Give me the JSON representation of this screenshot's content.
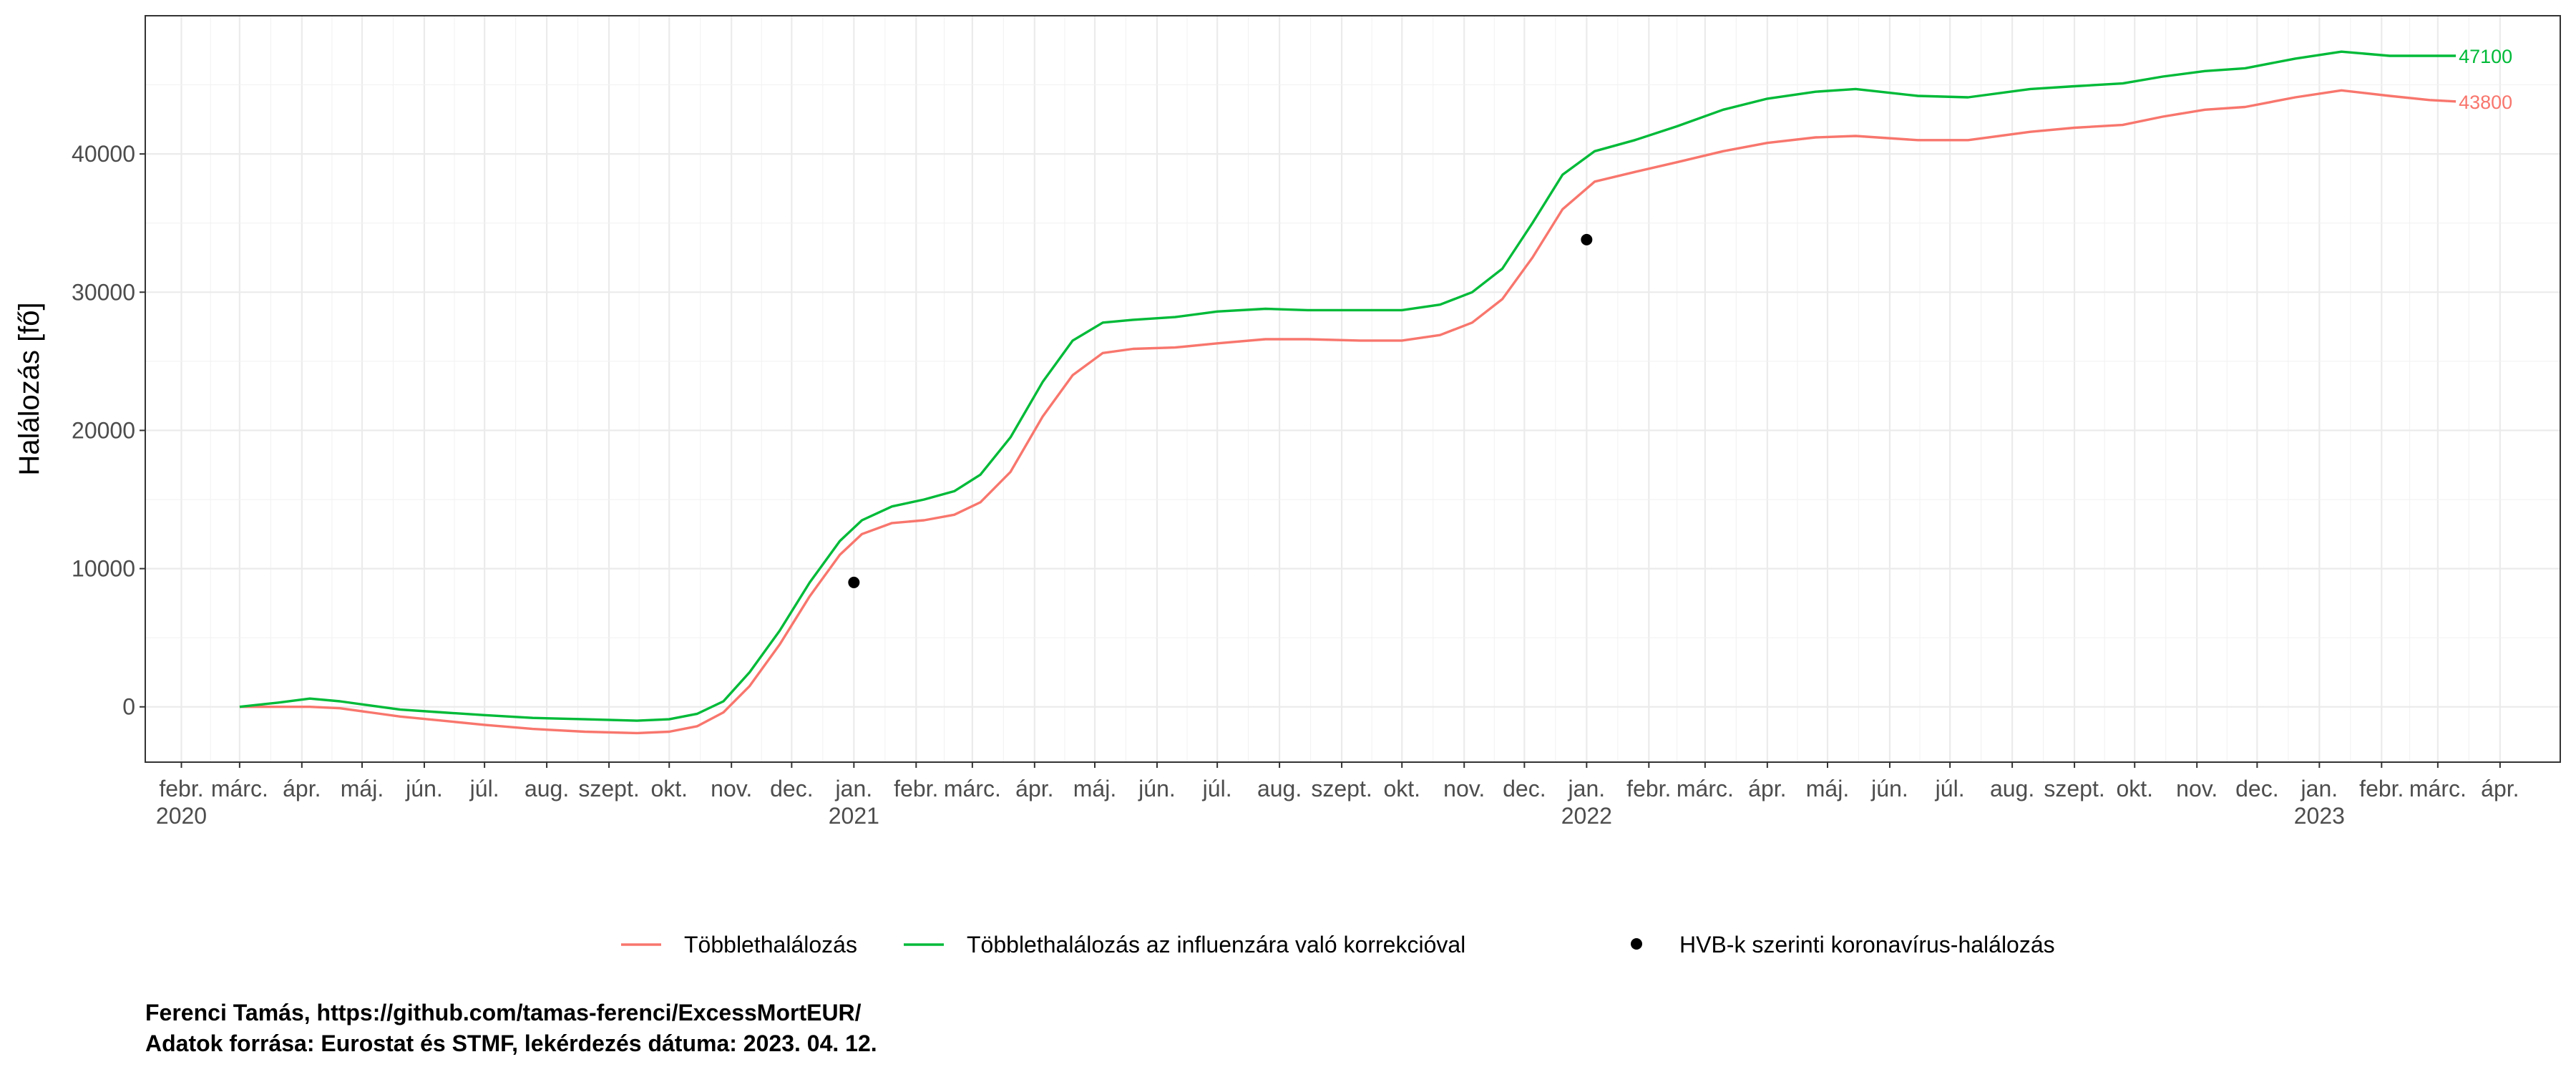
{
  "chart_data": {
    "type": "line",
    "ylabel": "Halálozás [fő]",
    "ylim": [
      -4000,
      50000
    ],
    "yticks": [
      0,
      10000,
      20000,
      30000,
      40000
    ],
    "xlim": [
      "2020-01-14",
      "2023-05-01"
    ],
    "grid": true,
    "legend_position": "bottom",
    "x_ticks": [
      {
        "date": "2020-02-01",
        "label": "febr.",
        "year": "2020"
      },
      {
        "date": "2020-03-01",
        "label": "márc.",
        "year": ""
      },
      {
        "date": "2020-04-01",
        "label": "ápr.",
        "year": ""
      },
      {
        "date": "2020-05-01",
        "label": "máj.",
        "year": ""
      },
      {
        "date": "2020-06-01",
        "label": "jún.",
        "year": ""
      },
      {
        "date": "2020-07-01",
        "label": "júl.",
        "year": ""
      },
      {
        "date": "2020-08-01",
        "label": "aug.",
        "year": ""
      },
      {
        "date": "2020-09-01",
        "label": "szept.",
        "year": ""
      },
      {
        "date": "2020-10-01",
        "label": "okt.",
        "year": ""
      },
      {
        "date": "2020-11-01",
        "label": "nov.",
        "year": ""
      },
      {
        "date": "2020-12-01",
        "label": "dec.",
        "year": ""
      },
      {
        "date": "2021-01-01",
        "label": "jan.",
        "year": "2021"
      },
      {
        "date": "2021-02-01",
        "label": "febr.",
        "year": ""
      },
      {
        "date": "2021-03-01",
        "label": "márc.",
        "year": ""
      },
      {
        "date": "2021-04-01",
        "label": "ápr.",
        "year": ""
      },
      {
        "date": "2021-05-01",
        "label": "máj.",
        "year": ""
      },
      {
        "date": "2021-06-01",
        "label": "jún.",
        "year": ""
      },
      {
        "date": "2021-07-01",
        "label": "júl.",
        "year": ""
      },
      {
        "date": "2021-08-01",
        "label": "aug.",
        "year": ""
      },
      {
        "date": "2021-09-01",
        "label": "szept.",
        "year": ""
      },
      {
        "date": "2021-10-01",
        "label": "okt.",
        "year": ""
      },
      {
        "date": "2021-11-01",
        "label": "nov.",
        "year": ""
      },
      {
        "date": "2021-12-01",
        "label": "dec.",
        "year": ""
      },
      {
        "date": "2022-01-01",
        "label": "jan.",
        "year": "2022"
      },
      {
        "date": "2022-02-01",
        "label": "febr.",
        "year": ""
      },
      {
        "date": "2022-03-01",
        "label": "márc.",
        "year": ""
      },
      {
        "date": "2022-04-01",
        "label": "ápr.",
        "year": ""
      },
      {
        "date": "2022-05-01",
        "label": "máj.",
        "year": ""
      },
      {
        "date": "2022-06-01",
        "label": "jún.",
        "year": ""
      },
      {
        "date": "2022-07-01",
        "label": "júl.",
        "year": ""
      },
      {
        "date": "2022-08-01",
        "label": "aug.",
        "year": ""
      },
      {
        "date": "2022-09-01",
        "label": "szept.",
        "year": ""
      },
      {
        "date": "2022-10-01",
        "label": "okt.",
        "year": ""
      },
      {
        "date": "2022-11-01",
        "label": "nov.",
        "year": ""
      },
      {
        "date": "2022-12-01",
        "label": "dec.",
        "year": ""
      },
      {
        "date": "2023-01-01",
        "label": "jan.",
        "year": "2023"
      },
      {
        "date": "2023-02-01",
        "label": "febr.",
        "year": ""
      },
      {
        "date": "2023-03-01",
        "label": "márc.",
        "year": ""
      },
      {
        "date": "2023-04-01",
        "label": "ápr.",
        "year": ""
      }
    ],
    "series": [
      {
        "name": "Többlethalálozás",
        "color": "#F8766D",
        "end_label": "43800",
        "points": [
          [
            "2020-03-01",
            0
          ],
          [
            "2020-03-20",
            0
          ],
          [
            "2020-04-05",
            0
          ],
          [
            "2020-04-20",
            -100
          ],
          [
            "2020-05-05",
            -400
          ],
          [
            "2020-05-20",
            -700
          ],
          [
            "2020-06-10",
            -1000
          ],
          [
            "2020-07-01",
            -1300
          ],
          [
            "2020-07-25",
            -1600
          ],
          [
            "2020-08-20",
            -1800
          ],
          [
            "2020-09-15",
            -1900
          ],
          [
            "2020-10-01",
            -1800
          ],
          [
            "2020-10-15",
            -1400
          ],
          [
            "2020-10-28",
            -400
          ],
          [
            "2020-11-10",
            1500
          ],
          [
            "2020-11-25",
            4500
          ],
          [
            "2020-12-10",
            8000
          ],
          [
            "2020-12-25",
            11000
          ],
          [
            "2021-01-05",
            12500
          ],
          [
            "2021-01-20",
            13300
          ],
          [
            "2021-02-05",
            13500
          ],
          [
            "2021-02-20",
            13900
          ],
          [
            "2021-03-05",
            14800
          ],
          [
            "2021-03-20",
            17000
          ],
          [
            "2021-04-05",
            21000
          ],
          [
            "2021-04-20",
            24000
          ],
          [
            "2021-05-05",
            25600
          ],
          [
            "2021-05-20",
            25900
          ],
          [
            "2021-06-10",
            26000
          ],
          [
            "2021-07-01",
            26300
          ],
          [
            "2021-07-25",
            26600
          ],
          [
            "2021-08-15",
            26600
          ],
          [
            "2021-09-10",
            26500
          ],
          [
            "2021-10-01",
            26500
          ],
          [
            "2021-10-20",
            26900
          ],
          [
            "2021-11-05",
            27800
          ],
          [
            "2021-11-20",
            29500
          ],
          [
            "2021-12-05",
            32500
          ],
          [
            "2021-12-20",
            36000
          ],
          [
            "2022-01-05",
            38000
          ],
          [
            "2022-01-25",
            38700
          ],
          [
            "2022-02-15",
            39400
          ],
          [
            "2022-03-10",
            40200
          ],
          [
            "2022-04-01",
            40800
          ],
          [
            "2022-04-25",
            41200
          ],
          [
            "2022-05-15",
            41300
          ],
          [
            "2022-06-15",
            41000
          ],
          [
            "2022-07-10",
            41000
          ],
          [
            "2022-08-10",
            41600
          ],
          [
            "2022-09-01",
            41900
          ],
          [
            "2022-09-25",
            42100
          ],
          [
            "2022-10-15",
            42700
          ],
          [
            "2022-11-05",
            43200
          ],
          [
            "2022-11-25",
            43400
          ],
          [
            "2022-12-20",
            44100
          ],
          [
            "2023-01-12",
            44600
          ],
          [
            "2023-02-05",
            44200
          ],
          [
            "2023-02-25",
            43900
          ],
          [
            "2023-03-10",
            43800
          ]
        ]
      },
      {
        "name": "Többlethalálozás az influenzára való korrekcióval",
        "color": "#00BA38",
        "end_label": "47100",
        "points": [
          [
            "2020-03-01",
            0
          ],
          [
            "2020-03-20",
            300
          ],
          [
            "2020-04-05",
            600
          ],
          [
            "2020-04-20",
            400
          ],
          [
            "2020-05-05",
            100
          ],
          [
            "2020-05-20",
            -200
          ],
          [
            "2020-06-10",
            -400
          ],
          [
            "2020-07-01",
            -600
          ],
          [
            "2020-07-25",
            -800
          ],
          [
            "2020-08-20",
            -900
          ],
          [
            "2020-09-15",
            -1000
          ],
          [
            "2020-10-01",
            -900
          ],
          [
            "2020-10-15",
            -500
          ],
          [
            "2020-10-28",
            400
          ],
          [
            "2020-11-10",
            2500
          ],
          [
            "2020-11-25",
            5500
          ],
          [
            "2020-12-10",
            9000
          ],
          [
            "2020-12-25",
            12000
          ],
          [
            "2021-01-05",
            13500
          ],
          [
            "2021-01-20",
            14500
          ],
          [
            "2021-02-05",
            15000
          ],
          [
            "2021-02-20",
            15600
          ],
          [
            "2021-03-05",
            16800
          ],
          [
            "2021-03-20",
            19500
          ],
          [
            "2021-04-05",
            23500
          ],
          [
            "2021-04-20",
            26500
          ],
          [
            "2021-05-05",
            27800
          ],
          [
            "2021-05-20",
            28000
          ],
          [
            "2021-06-10",
            28200
          ],
          [
            "2021-07-01",
            28600
          ],
          [
            "2021-07-25",
            28800
          ],
          [
            "2021-08-15",
            28700
          ],
          [
            "2021-09-10",
            28700
          ],
          [
            "2021-10-01",
            28700
          ],
          [
            "2021-10-20",
            29100
          ],
          [
            "2021-11-05",
            30000
          ],
          [
            "2021-11-20",
            31700
          ],
          [
            "2021-12-05",
            35000
          ],
          [
            "2021-12-20",
            38500
          ],
          [
            "2022-01-05",
            40200
          ],
          [
            "2022-01-25",
            41000
          ],
          [
            "2022-02-15",
            42000
          ],
          [
            "2022-03-10",
            43200
          ],
          [
            "2022-04-01",
            44000
          ],
          [
            "2022-04-25",
            44500
          ],
          [
            "2022-05-15",
            44700
          ],
          [
            "2022-06-15",
            44200
          ],
          [
            "2022-07-10",
            44100
          ],
          [
            "2022-08-10",
            44700
          ],
          [
            "2022-09-01",
            44900
          ],
          [
            "2022-09-25",
            45100
          ],
          [
            "2022-10-15",
            45600
          ],
          [
            "2022-11-05",
            46000
          ],
          [
            "2022-11-25",
            46200
          ],
          [
            "2022-12-20",
            46900
          ],
          [
            "2023-01-12",
            47400
          ],
          [
            "2023-02-05",
            47100
          ],
          [
            "2023-02-25",
            47100
          ],
          [
            "2023-03-10",
            47100
          ]
        ]
      }
    ],
    "points_series": {
      "name": "HVB-k szerinti koronavírus-halálozás",
      "color": "#000000",
      "points": [
        [
          "2021-01-01",
          9000
        ],
        [
          "2022-01-01",
          33800
        ]
      ]
    }
  },
  "caption": {
    "line1": "Ferenci Tamás, https://github.com/tamas-ferenci/ExcessMortEUR/",
    "line2": "Adatok forrása: Eurostat és STMF, lekérdezés dátuma: 2023. 04. 12."
  }
}
